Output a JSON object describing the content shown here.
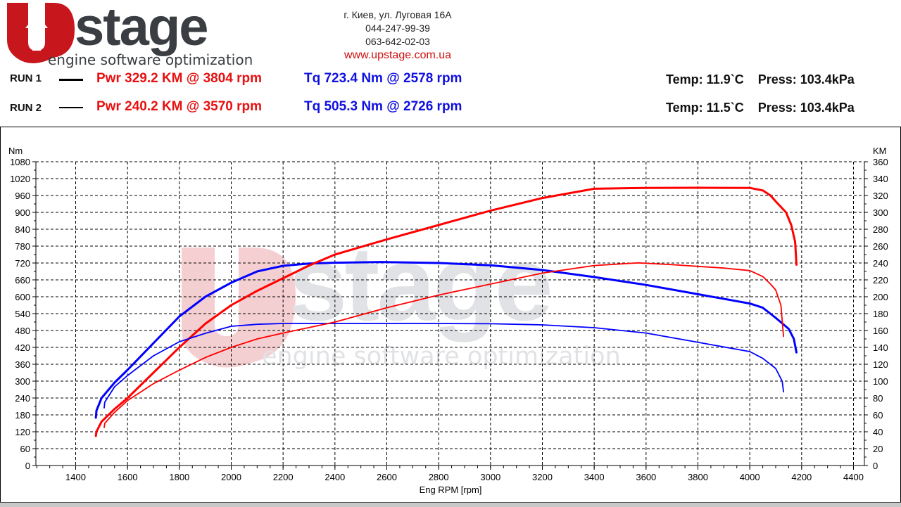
{
  "header": {
    "brand": "UPstage",
    "tagline": "engine software optimization",
    "address": "г. Киев, ул. Луговая 16А",
    "phone1": "044-247-99-39",
    "phone2": "063-642-02-03",
    "website": "www.upstage.com.ua"
  },
  "runs": [
    {
      "label": "RUN 1",
      "power": "Pwr  329.2 KM @ 3804 rpm",
      "torque": "Tq 723.4 Nm @ 2578 rpm",
      "env": "Temp: 11.9`C    Press: 103.4kPa"
    },
    {
      "label": "RUN 2",
      "power": "Pwr  240.2 KM @ 3570 rpm",
      "torque": "Tq 505.3 Nm @ 2726 rpm",
      "env": "Temp: 11.5`C    Press: 103.4kPa"
    }
  ],
  "colors": {
    "power": "#ff0000",
    "torque": "#0000ff"
  },
  "chart_data": {
    "type": "line",
    "xlabel": "Eng RPM [rpm]",
    "ylabel_left": "Nm",
    "ylabel_right": "KM",
    "xlim": [
      1250,
      4450
    ],
    "ylim_left": [
      0,
      1080
    ],
    "ylim_right": [
      0,
      360
    ],
    "x_ticks": [
      "1400",
      "1600",
      "1800",
      "2000",
      "2200",
      "2400",
      "2600",
      "2800",
      "3000",
      "3200",
      "3400",
      "3600",
      "3800",
      "4000",
      "4200",
      "4400"
    ],
    "y_ticks_left": [
      "0",
      "60",
      "120",
      "180",
      "240",
      "300",
      "360",
      "420",
      "480",
      "540",
      "600",
      "660",
      "720",
      "780",
      "840",
      "900",
      "960",
      "1020",
      "1080"
    ],
    "y_ticks_right": [
      "0",
      "20",
      "40",
      "60",
      "80",
      "100",
      "120",
      "140",
      "160",
      "180",
      "200",
      "220",
      "240",
      "260",
      "280",
      "300",
      "320",
      "340",
      "360"
    ],
    "grid": true,
    "series": [
      {
        "name": "Run 1 Torque",
        "axis": "left",
        "unit": "Nm",
        "color": "#0000ff",
        "width": 3,
        "x": [
          1478,
          1480,
          1500,
          1550,
          1600,
          1700,
          1800,
          1900,
          2000,
          2100,
          2200,
          2300,
          2400,
          2578,
          2800,
          3000,
          3200,
          3400,
          3600,
          3800,
          4000,
          4050,
          4100,
          4150,
          4170,
          4180
        ],
        "y": [
          170,
          195,
          240,
          295,
          340,
          435,
          530,
          600,
          650,
          690,
          710,
          718,
          721,
          723.4,
          720,
          712,
          695,
          670,
          642,
          609,
          576,
          561,
          525,
          486,
          450,
          402
        ]
      },
      {
        "name": "Run 1 Power",
        "axis": "right",
        "unit": "KM",
        "color": "#ff0000",
        "width": 3,
        "x": [
          1478,
          1480,
          1500,
          1550,
          1600,
          1700,
          1800,
          1900,
          2000,
          2100,
          2200,
          2300,
          2400,
          2600,
          2800,
          3000,
          3200,
          3400,
          3600,
          3804,
          4000,
          4050,
          4080,
          4100,
          4140,
          4160,
          4175,
          4180
        ],
        "y": [
          35,
          40,
          52,
          67,
          80,
          110,
          140,
          168,
          190,
          207,
          222,
          237,
          250,
          268,
          285,
          302,
          317,
          328,
          329,
          329.2,
          329,
          326,
          320,
          313,
          300,
          285,
          265,
          238
        ]
      },
      {
        "name": "Run 2 Torque",
        "axis": "left",
        "unit": "Nm",
        "color": "#0000ff",
        "width": 1.8,
        "x": [
          1510,
          1512,
          1550,
          1600,
          1700,
          1800,
          1900,
          2000,
          2100,
          2200,
          2400,
          2726,
          3000,
          3200,
          3400,
          3600,
          3800,
          4000,
          4050,
          4100,
          4125,
          4130
        ],
        "y": [
          205,
          225,
          280,
          320,
          390,
          440,
          470,
          495,
          502,
          505,
          505,
          505.3,
          504,
          500,
          490,
          471,
          438,
          405,
          381,
          345,
          300,
          262
        ]
      },
      {
        "name": "Run 2 Power",
        "axis": "right",
        "unit": "KM",
        "color": "#ff0000",
        "width": 1.8,
        "x": [
          1510,
          1512,
          1550,
          1600,
          1700,
          1800,
          1900,
          2000,
          2100,
          2200,
          2400,
          2600,
          2800,
          3000,
          3200,
          3400,
          3570,
          3700,
          3800,
          3900,
          4000,
          4050,
          4080,
          4100,
          4120,
          4130
        ],
        "y": [
          45,
          50,
          63,
          77,
          97,
          113,
          128,
          140,
          150,
          157,
          170,
          187,
          202,
          215,
          228,
          237,
          240.2,
          238,
          236,
          234,
          231,
          224,
          215,
          208,
          190,
          153
        ]
      }
    ]
  }
}
